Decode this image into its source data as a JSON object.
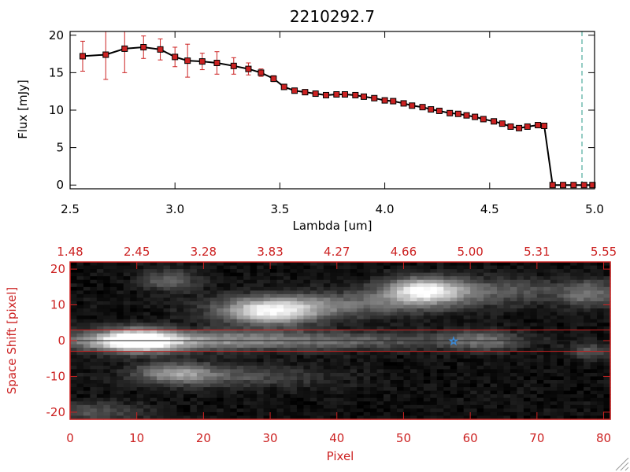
{
  "chart_data": [
    {
      "type": "line",
      "title": "2210292.7",
      "xlabel": "Lambda [um]",
      "ylabel": "Flux [mJy]",
      "xlim": [
        2.5,
        5.0
      ],
      "ylim": [
        -0.5,
        20.5
      ],
      "xticks": [
        "2.5",
        "3.0",
        "3.5",
        "4.0",
        "4.5",
        "5.0"
      ],
      "yticks": [
        "0",
        "5",
        "10",
        "15",
        "20"
      ],
      "grid": false,
      "series": [
        {
          "color": "#000000",
          "marker_color": "#cc2222",
          "error_color": "#cc2222",
          "x": [
            2.56,
            2.67,
            2.76,
            2.85,
            2.93,
            3.0,
            3.06,
            3.13,
            3.2,
            3.28,
            3.35,
            3.41,
            3.47,
            3.52,
            3.57,
            3.62,
            3.67,
            3.72,
            3.77,
            3.81,
            3.86,
            3.9,
            3.95,
            4.0,
            4.04,
            4.09,
            4.13,
            4.18,
            4.22,
            4.26,
            4.31,
            4.35,
            4.39,
            4.43,
            4.47,
            4.52,
            4.56,
            4.6,
            4.64,
            4.68,
            4.73,
            4.76,
            4.8,
            4.85,
            4.9,
            4.95,
            4.99
          ],
          "y": [
            17.2,
            17.4,
            18.2,
            18.4,
            18.1,
            17.1,
            16.6,
            16.5,
            16.3,
            15.9,
            15.5,
            15.0,
            14.2,
            13.1,
            12.6,
            12.4,
            12.2,
            12.0,
            12.1,
            12.1,
            12.0,
            11.8,
            11.6,
            11.3,
            11.2,
            10.9,
            10.6,
            10.4,
            10.1,
            9.9,
            9.6,
            9.5,
            9.3,
            9.1,
            8.8,
            8.5,
            8.2,
            7.8,
            7.6,
            7.8,
            8.0,
            7.9,
            0.0,
            0.0,
            0.0,
            0.0,
            0.0
          ],
          "yerr": [
            2.0,
            3.3,
            3.2,
            1.5,
            1.4,
            1.3,
            2.2,
            1.1,
            1.5,
            1.1,
            0.8,
            0.5,
            0.4,
            0.3,
            0.2,
            0.2,
            0.2,
            0.2,
            0.2,
            0.2,
            0.2,
            0.2,
            0.2,
            0.2,
            0.2,
            0.2,
            0.2,
            0.2,
            0.2,
            0.2,
            0.2,
            0.2,
            0.2,
            0.2,
            0.2,
            0.2,
            0.2,
            0.2,
            0.2,
            0.2,
            0.2,
            0.2,
            0.2,
            0.2,
            0.2,
            0.2,
            0.2
          ]
        }
      ],
      "reference_lines": [
        {
          "axis": "x",
          "value": 4.94,
          "style": "dashed",
          "color": "#2a9a88"
        }
      ]
    },
    {
      "type": "heatmap",
      "xlabel": "Pixel",
      "ylabel": "Space Shift [pixel]",
      "xlim": [
        0,
        81
      ],
      "ylim": [
        -22,
        22
      ],
      "xticks": [
        "0",
        "10",
        "20",
        "30",
        "40",
        "50",
        "60",
        "70",
        "80"
      ],
      "yticks": [
        "-20",
        "-10",
        "0",
        "10",
        "20"
      ],
      "top_axis_ticks": [
        "1.48",
        "2.45",
        "3.28",
        "3.83",
        "4.27",
        "4.66",
        "5.00",
        "5.31",
        "5.55"
      ],
      "colormap": "grayscale",
      "frame_color": "#cc2222",
      "extraction_window": [
        -3,
        3
      ],
      "center_line": 0,
      "background_level": 0.08,
      "blobs": [
        {
          "x": 10,
          "y": 0,
          "sx": 4.0,
          "sy": 2.2,
          "amp": 0.95
        },
        {
          "x": 13,
          "y": 0,
          "sx": 14.0,
          "sy": 2.0,
          "amp": 0.45
        },
        {
          "x": 40,
          "y": 0,
          "sx": 16.0,
          "sy": 1.8,
          "amp": 0.3
        },
        {
          "x": 62,
          "y": 0,
          "sx": 4.0,
          "sy": 2.0,
          "amp": 0.3
        },
        {
          "x": 30,
          "y": 8,
          "sx": 5.0,
          "sy": 2.5,
          "amp": 0.8
        },
        {
          "x": 40,
          "y": 10,
          "sx": 12.0,
          "sy": 2.5,
          "amp": 0.35
        },
        {
          "x": 53,
          "y": 14,
          "sx": 4.0,
          "sy": 2.5,
          "amp": 0.75
        },
        {
          "x": 62,
          "y": 14,
          "sx": 10.0,
          "sy": 2.5,
          "amp": 0.3
        },
        {
          "x": 78,
          "y": 13,
          "sx": 3.0,
          "sy": 2.5,
          "amp": 0.35
        },
        {
          "x": 15,
          "y": 17,
          "sx": 3.0,
          "sy": 2.0,
          "amp": 0.35
        },
        {
          "x": 16,
          "y": -9,
          "sx": 4.0,
          "sy": 2.0,
          "amp": 0.45
        },
        {
          "x": 25,
          "y": -10,
          "sx": 10.0,
          "sy": 2.2,
          "amp": 0.25
        },
        {
          "x": 3,
          "y": -20,
          "sx": 6.0,
          "sy": 2.0,
          "amp": 0.25
        },
        {
          "x": 78,
          "y": -3,
          "sx": 2.0,
          "sy": 1.5,
          "amp": 0.3
        }
      ],
      "annotations": [
        {
          "x": 57.5,
          "y": 0,
          "symbol": "star",
          "color": "#3a8ad8"
        }
      ]
    }
  ]
}
